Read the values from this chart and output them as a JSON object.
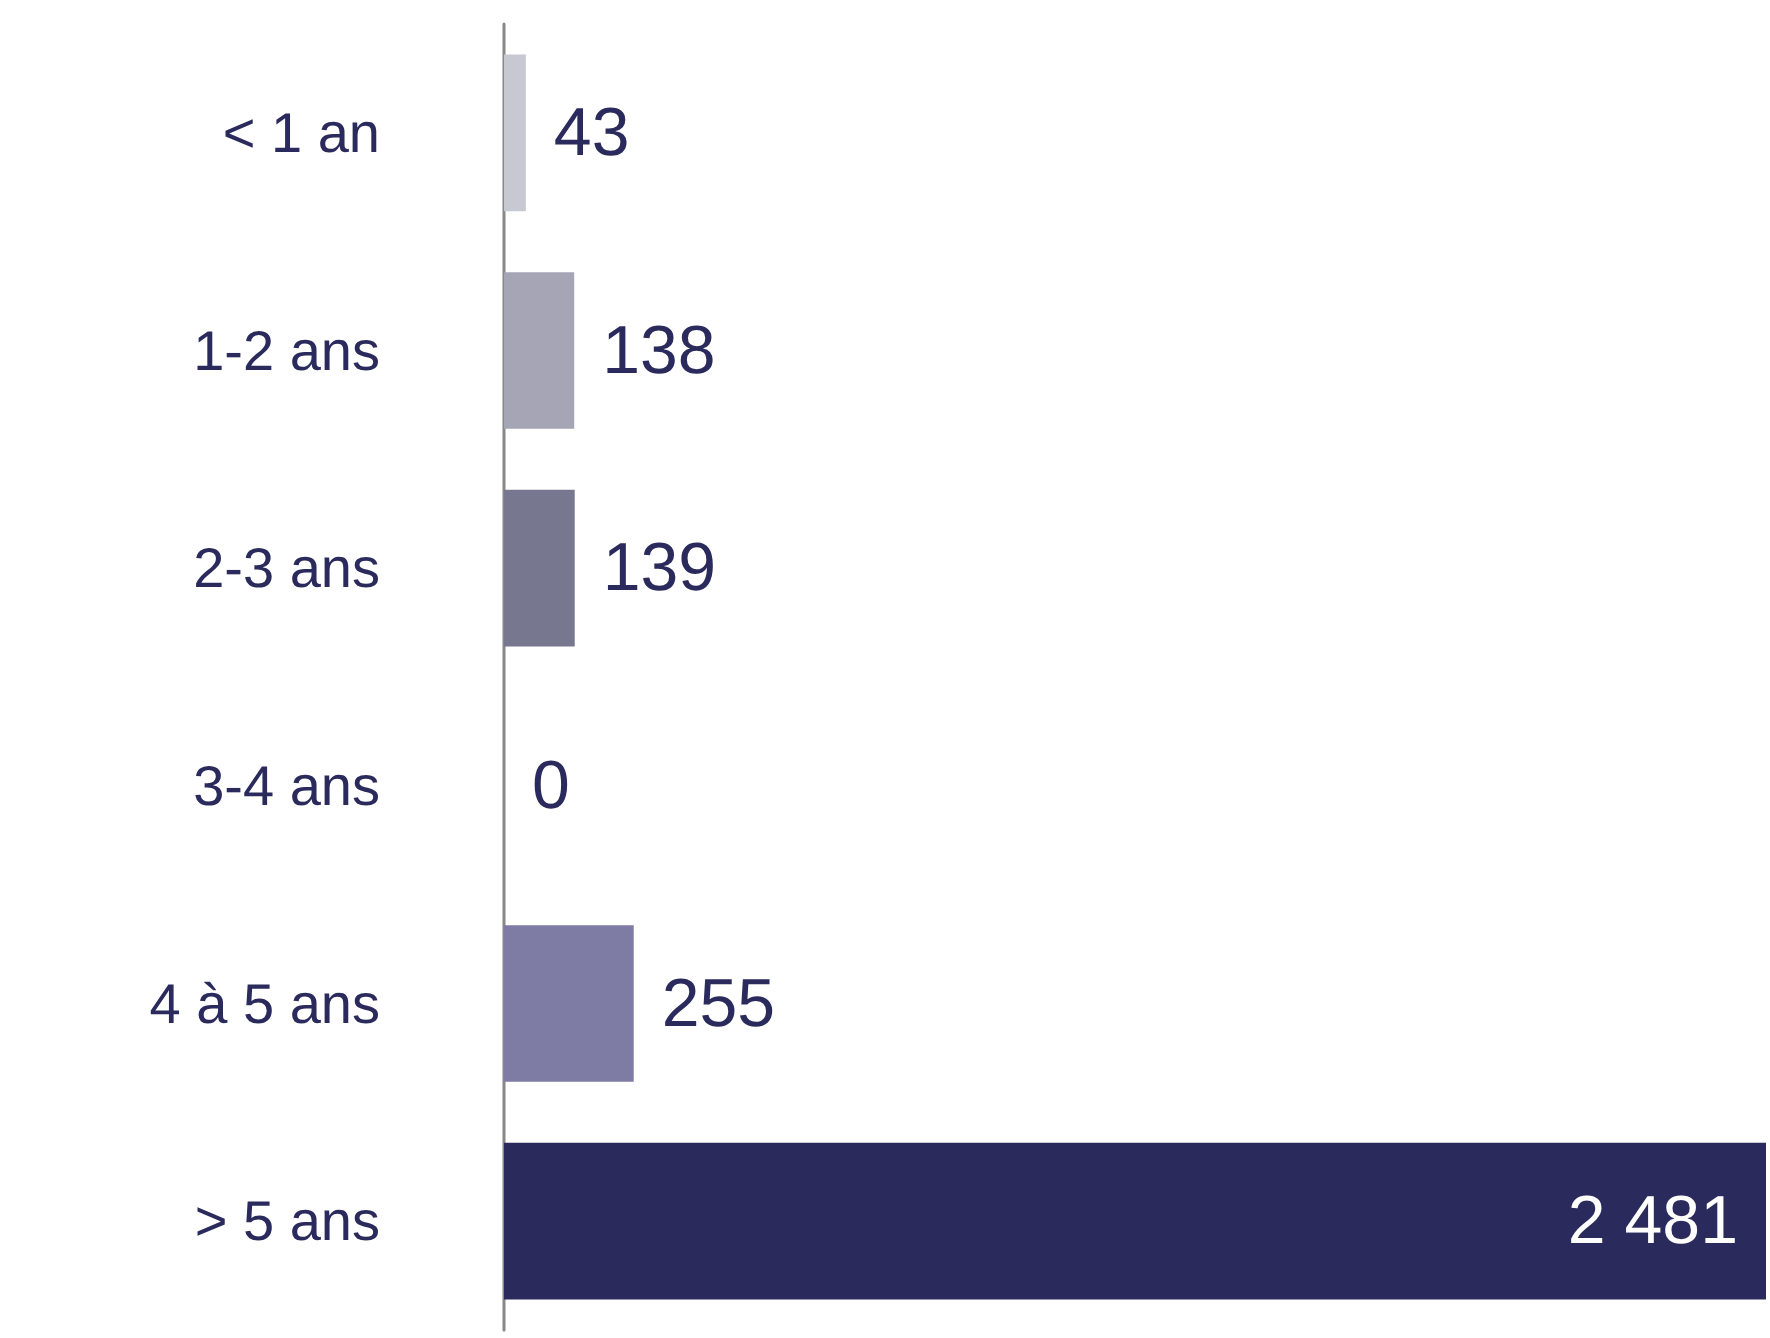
{
  "chart_data": {
    "type": "bar",
    "orientation": "horizontal",
    "categories": [
      "< 1 an",
      "1-2 ans",
      "2-3 ans",
      "3-4 ans",
      "4 à 5 ans",
      "> 5 ans"
    ],
    "values": [
      43,
      138,
      139,
      0,
      255,
      2481
    ],
    "colors": [
      "#c8c8d3",
      "#a5a5b5",
      "#77778f",
      "#8a8aa8",
      "#7e7ba4",
      "#2b2a5c"
    ],
    "data_labels": true
  }
}
